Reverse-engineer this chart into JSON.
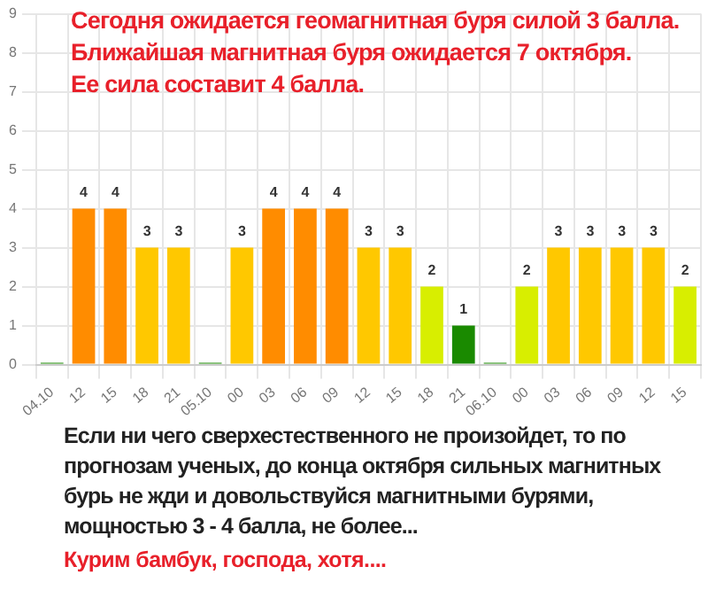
{
  "chart_data": {
    "type": "bar",
    "title": "Сегодня ожидается геомагнитная буря силой 3 балла.\nБлижайшая магнитная буря ожидается 7 октября.\nЕе сила составит 4 балла.",
    "categories": [
      "04.10",
      "12",
      "15",
      "18",
      "21",
      "05.10",
      "00",
      "03",
      "06",
      "09",
      "12",
      "15",
      "18",
      "21",
      "06.10",
      "00",
      "03",
      "06",
      "09",
      "12",
      "15"
    ],
    "values": [
      0,
      4,
      4,
      3,
      3,
      0,
      3,
      4,
      4,
      4,
      3,
      3,
      2,
      1,
      0,
      2,
      3,
      3,
      3,
      3,
      2
    ],
    "colors": [
      "#1a8a00",
      "#ff8c00",
      "#ff8c00",
      "#ffc800",
      "#ffc800",
      "#1a8a00",
      "#ffc800",
      "#ff8c00",
      "#ff8c00",
      "#ff8c00",
      "#ffc800",
      "#ffc800",
      "#d8ee00",
      "#1a8a00",
      "#1a8a00",
      "#d8ee00",
      "#ffc800",
      "#ffc800",
      "#ffc800",
      "#ffc800",
      "#d8ee00"
    ],
    "value_labels": [
      null,
      "4",
      "4",
      "3",
      "3",
      null,
      "3",
      "4",
      "4",
      "4",
      "3",
      "3",
      "2",
      "1",
      null,
      "2",
      "3",
      "3",
      "3",
      "3",
      "2"
    ],
    "ylim": [
      0,
      9
    ],
    "yticks": [
      0,
      1,
      2,
      3,
      4,
      5,
      6,
      7,
      8,
      9
    ],
    "grid": true,
    "legend": false,
    "annotations": [
      "Если ни чего сверхестественного не произойдет, то по прогнозам ученых, до конца октября сильных магнитных бурь не жди и довольствуйся магнитными бурями, мощностью 3 - 4 балла, не более...",
      "Курим бамбук, господа, хотя...."
    ]
  }
}
